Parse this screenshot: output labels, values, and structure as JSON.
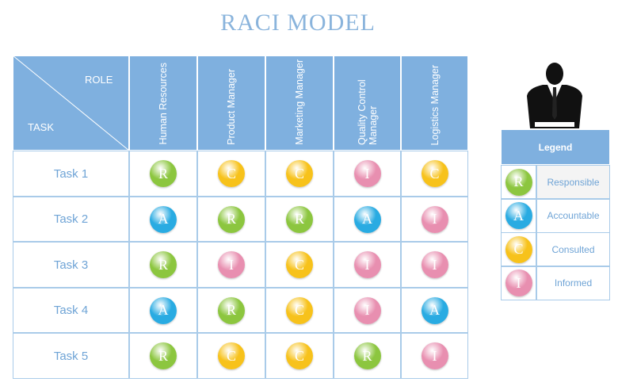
{
  "title": "RACI MODEL",
  "table": {
    "role_header": "ROLE",
    "task_header": "TASK",
    "roles": [
      "Human Resources",
      "Product Manager",
      "Marketing Manager",
      "Quality Control Manager",
      "Logistics Manager"
    ],
    "rows": [
      {
        "task": "Task 1",
        "cells": [
          "R",
          "C",
          "C",
          "I",
          "C"
        ]
      },
      {
        "task": "Task 2",
        "cells": [
          "A",
          "R",
          "R",
          "A",
          "I"
        ]
      },
      {
        "task": "Task 3",
        "cells": [
          "R",
          "I",
          "C",
          "I",
          "I"
        ]
      },
      {
        "task": "Task 4",
        "cells": [
          "A",
          "R",
          "C",
          "I",
          "A"
        ]
      },
      {
        "task": "Task 5",
        "cells": [
          "R",
          "C",
          "C",
          "R",
          "I"
        ]
      }
    ]
  },
  "legend": {
    "title": "Legend",
    "items": [
      {
        "letter": "R",
        "label": "Responsible",
        "color": "#8cc63f"
      },
      {
        "letter": "A",
        "label": "Accountable",
        "color": "#29abe2"
      },
      {
        "letter": "C",
        "label": "Consulted",
        "color": "#f7c21b"
      },
      {
        "letter": "I",
        "label": "Informed",
        "color": "#e88fb0"
      }
    ]
  }
}
